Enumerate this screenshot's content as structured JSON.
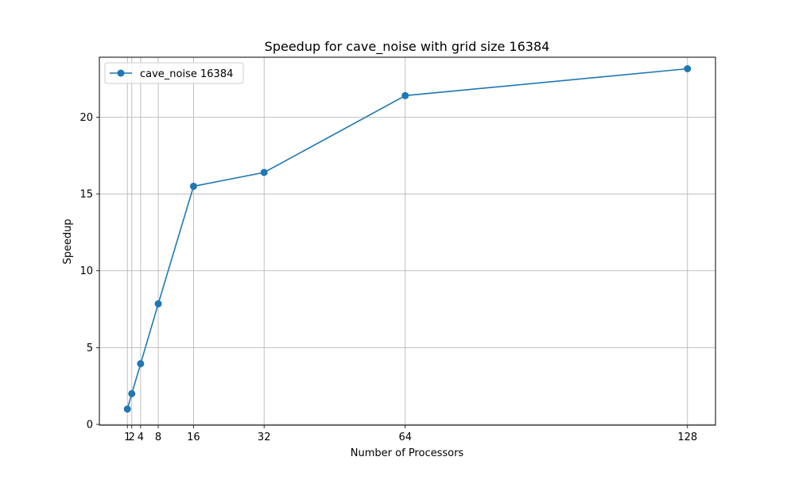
{
  "chart_data": {
    "type": "line",
    "title": "Speedup for cave_noise with grid size 16384",
    "xlabel": "Number of Processors",
    "ylabel": "Speedup",
    "x": [
      1,
      2,
      4,
      8,
      16,
      32,
      64,
      128
    ],
    "x_tick_labels": [
      "1",
      "2",
      "4",
      "8",
      "16",
      "32",
      "64",
      "128"
    ],
    "y_ticks": [
      0,
      5,
      10,
      15,
      20
    ],
    "y_tick_labels": [
      "0",
      "5",
      "10",
      "15",
      "20"
    ],
    "xlim": [
      -5.35,
      134.35
    ],
    "ylim": [
      -0.05,
      23.9
    ],
    "grid": true,
    "legend_position": "upper-left",
    "series": [
      {
        "name": "cave_noise 16384",
        "color": "#1f77b4",
        "marker": "circle",
        "values": [
          1.0,
          2.0,
          3.95,
          7.85,
          15.5,
          16.4,
          21.4,
          23.15
        ]
      }
    ]
  }
}
